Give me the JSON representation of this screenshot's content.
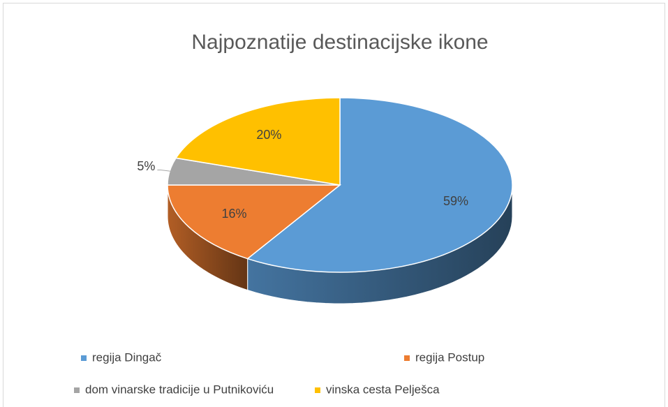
{
  "chart_data": {
    "type": "pie",
    "title": "Najpoznatije destinacijske ikone",
    "categories": [
      "regija Dingač",
      "regija Postup",
      "dom vinarske tradicije u Putnikoviću",
      "vinska cesta Pelješca"
    ],
    "values": [
      59,
      16,
      5,
      20
    ],
    "value_labels": [
      "59%",
      "16%",
      "5%",
      "20%"
    ],
    "colors": [
      "#5b9bd5",
      "#ed7d31",
      "#a5a5a5",
      "#ffc000"
    ],
    "legend": "bottom"
  }
}
